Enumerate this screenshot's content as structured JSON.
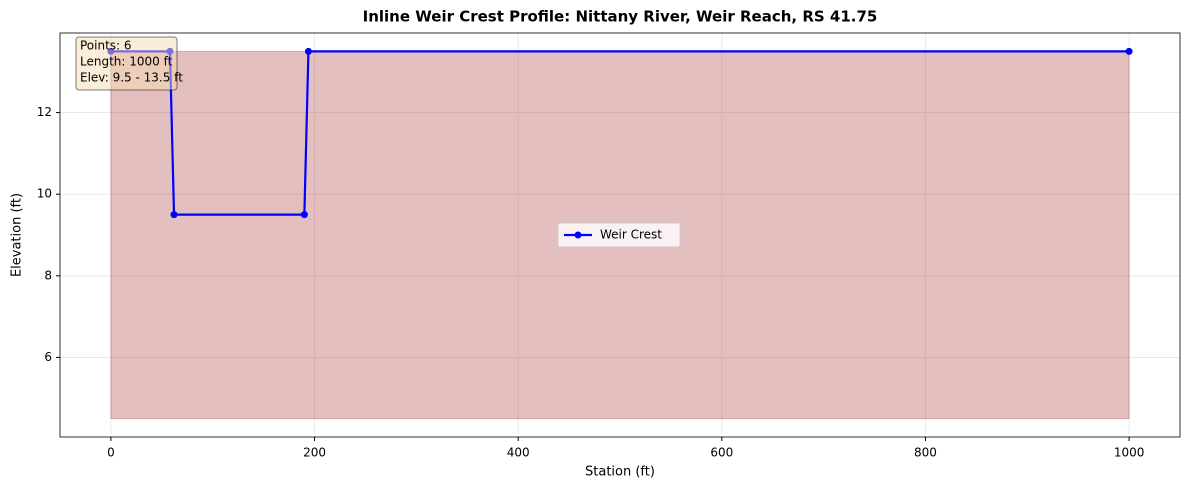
{
  "chart_data": {
    "type": "line",
    "title": "Inline Weir Crest Profile: Nittany River, Weir Reach, RS 41.75",
    "xlabel": "Station (ft)",
    "ylabel": "Elevation (ft)",
    "x": [
      0,
      58,
      62,
      190,
      194,
      1000
    ],
    "series": [
      {
        "name": "Weir Crest",
        "color": "#0000ff",
        "values": [
          13.5,
          13.5,
          9.5,
          9.5,
          13.5,
          13.5
        ]
      }
    ],
    "fill": {
      "lower": 4.5,
      "upper": 13.5,
      "color": "#a52a2a"
    },
    "xlim": [
      -50,
      1050
    ],
    "xticks": [
      0,
      200,
      400,
      600,
      800,
      1000
    ],
    "ylim": [
      4.05,
      13.95
    ],
    "yticks": [
      6,
      8,
      10,
      12
    ],
    "grid": true,
    "legend": "center",
    "annotation": [
      "Points: 6",
      "Length: 1000 ft",
      "Elev: 9.5 - 13.5 ft"
    ]
  }
}
